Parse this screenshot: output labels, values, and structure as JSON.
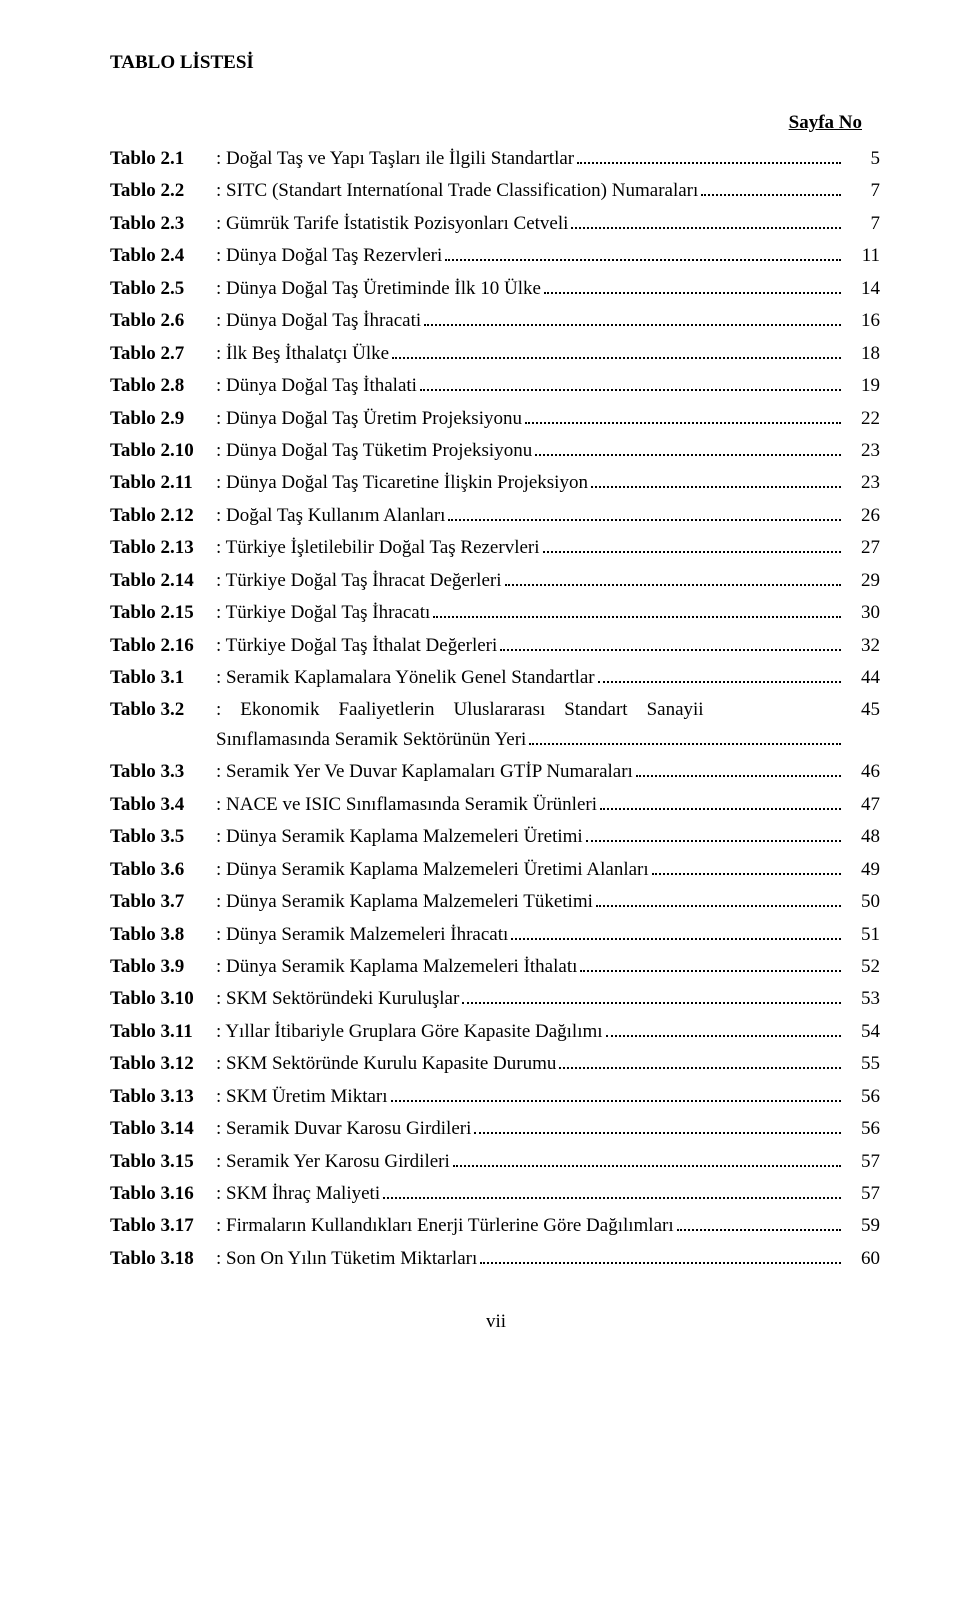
{
  "title": "TABLO LİSTESİ",
  "header_right": "Sayfa No",
  "page_number": "vii",
  "entries": [
    {
      "label": "Tablo 2.1",
      "text": ": Doğal Taş ve Yapı Taşları ile İlgili Standartlar",
      "page": "5"
    },
    {
      "label": "Tablo 2.2",
      "text": ": SITC (Standart Internatíonal Trade Classification) Numaraları",
      "page": "7"
    },
    {
      "label": "Tablo 2.3",
      "text": ": Gümrük Tarife İstatistik Pozisyonları Cetveli",
      "page": "7"
    },
    {
      "label": "Tablo 2.4",
      "text": ": Dünya Doğal Taş Rezervleri",
      "page": "11"
    },
    {
      "label": "Tablo 2.5",
      "text": ": Dünya Doğal Taş Üretiminde İlk 10 Ülke",
      "page": "14"
    },
    {
      "label": "Tablo 2.6",
      "text": ": Dünya Doğal Taş İhracati",
      "page": "16"
    },
    {
      "label": "Tablo 2.7",
      "text": ": İlk Beş İthalatçı Ülke",
      "page": "18"
    },
    {
      "label": "Tablo 2.8",
      "text": ": Dünya Doğal Taş İthalati",
      "page": "19"
    },
    {
      "label": "Tablo 2.9",
      "text": ": Dünya Doğal Taş Üretim Projeksiyonu",
      "page": "22"
    },
    {
      "label": "Tablo 2.10",
      "text": ": Dünya Doğal Taş Tüketim Projeksiyonu",
      "page": "23"
    },
    {
      "label": "Tablo 2.11",
      "text": ": Dünya Doğal Taş Ticaretine İlişkin Projeksiyon",
      "page": "23"
    },
    {
      "label": "Tablo 2.12",
      "text": ": Doğal Taş Kullanım Alanları",
      "page": "26"
    },
    {
      "label": "Tablo 2.13",
      "text": ": Türkiye İşletilebilir Doğal Taş Rezervleri",
      "page": "27"
    },
    {
      "label": "Tablo 2.14",
      "text": ": Türkiye Doğal Taş İhracat Değerleri",
      "page": "29"
    },
    {
      "label": "Tablo 2.15",
      "text": ": Türkiye Doğal Taş İhracatı",
      "page": "30"
    },
    {
      "label": "Tablo 2.16",
      "text": ": Türkiye Doğal Taş İthalat Değerleri",
      "page": "32"
    },
    {
      "label": "Tablo 3.1",
      "text": ": Seramik Kaplamalara Yönelik Genel Standartlar",
      "page": "44"
    },
    {
      "label": "Tablo 3.2",
      "multiline": true,
      "line1": ": Ekonomik Faaliyetlerin Uluslararası Standart Sanayii",
      "line2": "Sınıflamasında Seramik Sektörünün Yeri",
      "page": "45"
    },
    {
      "label": "Tablo 3.3",
      "text": ": Seramik Yer Ve Duvar Kaplamaları GTİP Numaraları",
      "page": "46"
    },
    {
      "label": "Tablo 3.4",
      "text": ": NACE ve ISIC Sınıflamasında Seramik Ürünleri",
      "page": "47"
    },
    {
      "label": "Tablo 3.5",
      "text": ": Dünya Seramik Kaplama Malzemeleri Üretimi",
      "page": "48"
    },
    {
      "label": "Tablo 3.6",
      "text": ": Dünya Seramik Kaplama Malzemeleri Üretimi Alanları",
      "page": "49"
    },
    {
      "label": "Tablo 3.7",
      "text": ": Dünya Seramik Kaplama Malzemeleri Tüketimi",
      "page": "50"
    },
    {
      "label": "Tablo 3.8",
      "text": ": Dünya Seramik Malzemeleri İhracatı",
      "page": "51"
    },
    {
      "label": "Tablo 3.9",
      "text": ": Dünya Seramik Kaplama Malzemeleri İthalatı",
      "page": "52"
    },
    {
      "label": "Tablo 3.10",
      "text": ": SKM Sektöründeki Kuruluşlar",
      "page": "53"
    },
    {
      "label": "Tablo 3.11",
      "text": ": Yıllar İtibariyle Gruplara Göre Kapasite Dağılımı",
      "page": "54"
    },
    {
      "label": "Tablo 3.12",
      "text": ": SKM Sektöründe Kurulu Kapasite Durumu",
      "page": "55"
    },
    {
      "label": "Tablo 3.13",
      "text": ": SKM Üretim Miktarı",
      "page": "56"
    },
    {
      "label": "Tablo 3.14",
      "text": ": Seramik Duvar Karosu Girdileri",
      "page": "56"
    },
    {
      "label": "Tablo 3.15",
      "text": ": Seramik Yer Karosu Girdileri",
      "page": "57"
    },
    {
      "label": "Tablo 3.16",
      "text": ": SKM İhraç Maliyeti",
      "page": "57"
    },
    {
      "label": "Tablo 3.17",
      "text": ": Firmaların Kullandıkları Enerji Türlerine Göre Dağılımları",
      "page": "59"
    },
    {
      "label": "Tablo 3.18",
      "text": ": Son On Yılın Tüketim Miktarları",
      "page": "60"
    }
  ]
}
